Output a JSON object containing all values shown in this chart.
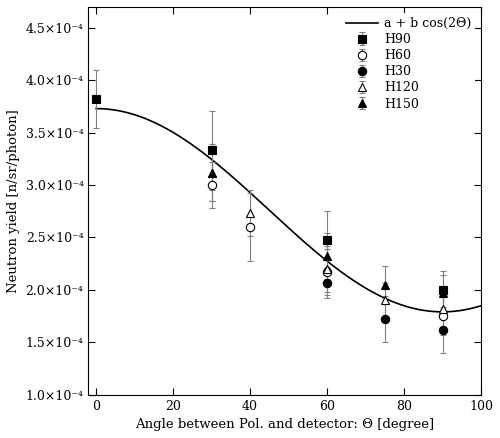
{
  "xlabel": "Angle between Pol. and detector: Θ [degree]",
  "ylabel": "Neutron yield [n/sr/photon]",
  "xlim": [
    -2,
    100
  ],
  "ylim": [
    0.0001,
    0.00047
  ],
  "ytick_values": [
    1.0,
    1.5,
    2.0,
    2.5,
    3.0,
    3.5,
    4.0,
    4.5
  ],
  "xticks": [
    0,
    20,
    40,
    60,
    80,
    100
  ],
  "fit_a": 0.000276,
  "fit_b": 9.7e-05,
  "series": {
    "H90": {
      "x": [
        0,
        30,
        60,
        90
      ],
      "y": [
        0.000382,
        0.000333,
        0.000248,
        0.0002
      ],
      "yerr": [
        2.8e-05,
        3.8e-05,
        2.7e-05,
        1.8e-05
      ],
      "marker": "s",
      "mfc": "black",
      "mec": "black"
    },
    "H60": {
      "x": [
        30,
        40,
        60,
        90
      ],
      "y": [
        0.0003,
        0.00026,
        0.000217,
        0.000175
      ],
      "yerr": [
        2.2e-05,
        3.2e-05,
        2.2e-05,
        1.8e-05
      ],
      "marker": "o",
      "mfc": "white",
      "mec": "black"
    },
    "H30": {
      "x": [
        60,
        75,
        90
      ],
      "y": [
        0.000207,
        0.000172,
        0.000162
      ],
      "yerr": [
        1.5e-05,
        2.2e-05,
        2.2e-05
      ],
      "marker": "o",
      "mfc": "black",
      "mec": "black"
    },
    "H120": {
      "x": [
        30,
        40,
        60,
        75,
        90
      ],
      "y": [
        0.000312,
        0.000273,
        0.00022,
        0.00019,
        0.000182
      ],
      "yerr": [
        2.7e-05,
        2.2e-05,
        2.2e-05,
        1.7e-05,
        1.7e-05
      ],
      "marker": "^",
      "mfc": "white",
      "mec": "black"
    },
    "H150": {
      "x": [
        30,
        60,
        75,
        90
      ],
      "y": [
        0.000312,
        0.000232,
        0.000205,
        0.000197
      ],
      "yerr": [
        2.7e-05,
        2.2e-05,
        1.8e-05,
        1.7e-05
      ],
      "marker": "^",
      "mfc": "black",
      "mec": "black"
    }
  },
  "legend_formula": "a + b cos(2Θ)",
  "legend_entries": [
    "H90",
    "H60",
    "H30",
    "H120",
    "H150"
  ],
  "line_color": "black",
  "background_color": "white",
  "markersize": 6
}
